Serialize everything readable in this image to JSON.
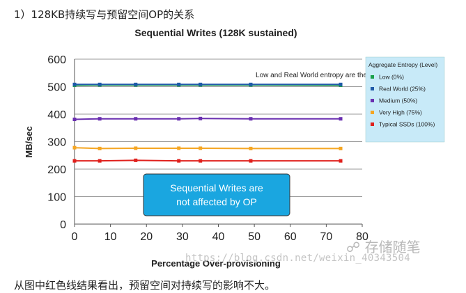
{
  "article": {
    "section_title": "1）128KB持续写与预留空间OP的关系",
    "footer_text": "从图中红色线结果看出，预留空间对持续写的影响不大。",
    "watermark_name": "存储随笔",
    "watermark_url": "https://blog.csdn.net/weixin_40343504"
  },
  "chart_data": {
    "type": "line",
    "title": "Sequential Writes (128K sustained)",
    "xlabel": "Percentage Over-provisioning",
    "ylabel": "MB/sec",
    "xlim": [
      0,
      80
    ],
    "ylim": [
      0,
      600
    ],
    "xticks": [
      0,
      10,
      20,
      30,
      40,
      50,
      60,
      70,
      80
    ],
    "yticks": [
      0,
      100,
      200,
      300,
      400,
      500,
      600
    ],
    "grid": true,
    "legend": {
      "title": "Aggregate Entropy (Level)",
      "placement": "right"
    },
    "x": [
      0,
      7,
      17,
      29,
      35,
      49,
      74
    ],
    "series": [
      {
        "name": "Low (0%)",
        "color": "#1aa04a",
        "values": [
          505,
          506,
          506,
          506,
          506,
          506,
          505
        ]
      },
      {
        "name": "Real World (25%)",
        "color": "#1f5aa8",
        "values": [
          508,
          508,
          508,
          508,
          508,
          508,
          508
        ]
      },
      {
        "name": "Medium (50%)",
        "color": "#6a2fb0",
        "values": [
          381,
          383,
          383,
          383,
          384,
          383,
          383
        ]
      },
      {
        "name": "Very High (75%)",
        "color": "#f5a623",
        "values": [
          278,
          275,
          276,
          276,
          276,
          275,
          275
        ]
      },
      {
        "name": "Typical SSDs (100%)",
        "color": "#e0201c",
        "values": [
          230,
          230,
          232,
          230,
          230,
          230,
          230
        ]
      }
    ],
    "annotations": [
      {
        "text": "Low and Real World entropy are the same here"
      },
      {
        "text_lines": [
          "Sequential Writes are",
          "not affected by OP"
        ]
      }
    ]
  }
}
